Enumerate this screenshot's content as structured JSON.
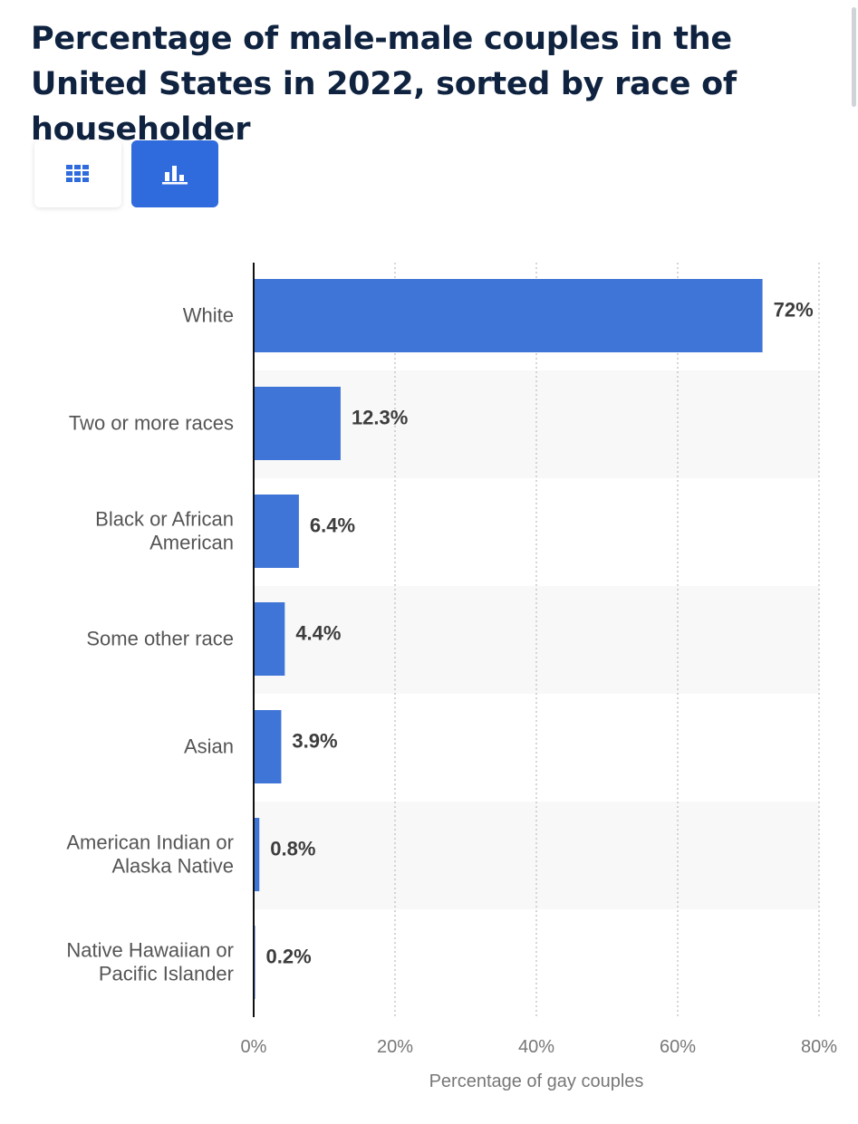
{
  "header": {
    "title": "Percentage of male-male couples in the United States in 2022, sorted by race of householder"
  },
  "view_toggle": {
    "table_icon": "grid-icon",
    "chart_icon": "bar-chart-icon",
    "active": "chart"
  },
  "colors": {
    "bar": "#3f75d6",
    "accent": "#2f6bdc",
    "title": "#0f2340",
    "band": "#f8f8f8"
  },
  "chart_data": {
    "type": "bar",
    "orientation": "horizontal",
    "categories": [
      [
        "White"
      ],
      [
        "Two or more races"
      ],
      [
        "Black or African",
        "American"
      ],
      [
        "Some other race"
      ],
      [
        "Asian"
      ],
      [
        "American Indian or",
        "Alaska Native"
      ],
      [
        "Native Hawaiian or",
        "Pacific Islander"
      ]
    ],
    "values": [
      72,
      12.3,
      6.4,
      4.4,
      3.9,
      0.8,
      0.2
    ],
    "value_labels": [
      "72%",
      "12.3%",
      "6.4%",
      "4.4%",
      "3.9%",
      "0.8%",
      "0.2%"
    ],
    "xlim": [
      0,
      80
    ],
    "xticks": [
      0,
      20,
      40,
      60,
      80
    ],
    "xtick_labels": [
      "0%",
      "20%",
      "40%",
      "60%",
      "80%"
    ],
    "xlabel": "Percentage of gay couples",
    "ylabel": "",
    "grid": "vertical dotted"
  }
}
